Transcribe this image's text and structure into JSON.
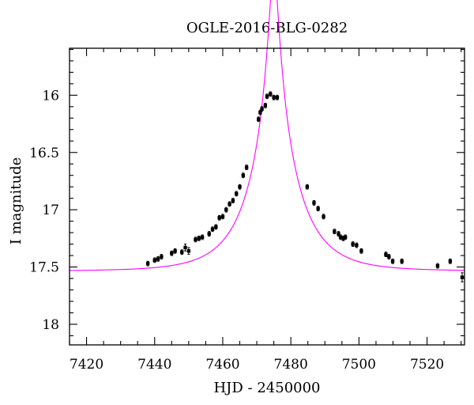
{
  "chart_data": {
    "type": "scatter",
    "title": "OGLE-2016-BLG-0282",
    "xlabel": "HJD - 2450000",
    "ylabel": "I magnitude",
    "xlim": [
      7415,
      7531
    ],
    "ylim": [
      18.18,
      15.59
    ],
    "y_inverted": true,
    "grid": false,
    "xticks": [
      7420,
      7440,
      7460,
      7480,
      7500,
      7520
    ],
    "xtick_labels": [
      "7420",
      "7440",
      "7460",
      "7480",
      "7500",
      "7520"
    ],
    "yticks": [
      16,
      16.5,
      17,
      17.5,
      18
    ],
    "ytick_labels": [
      "16",
      "16.5",
      "17",
      "17.5",
      "18"
    ],
    "colors": {
      "points": "#000000",
      "model": "#ff00ff",
      "frame": "#000000"
    },
    "model": {
      "type": "microlensing-fit",
      "t0": 7475.0,
      "u0": 0.089,
      "tE": 13.6,
      "m_baseline": 17.535
    },
    "series": [
      {
        "x": [
          7438,
          7440,
          7441,
          7442,
          7445,
          7446,
          7448,
          7449,
          7450,
          7452,
          7453,
          7454,
          7456,
          7457,
          7458,
          7459,
          7460,
          7461,
          7462,
          7463,
          7464,
          7465,
          7466,
          7467,
          7470.5,
          7471,
          7471.5,
          7472.5,
          7473,
          7474,
          7475,
          7476,
          7484.8,
          7486.8,
          7488,
          7489.6,
          7492.8,
          7494,
          7494.6,
          7495.4,
          7496,
          7498.2,
          7499.3,
          7500.7,
          7507.9,
          7508.8,
          7509.9,
          7512.6,
          7523.1,
          7526.8,
          7530.3
        ],
        "y": [
          17.47,
          17.44,
          17.43,
          17.41,
          17.38,
          17.36,
          17.37,
          17.33,
          17.36,
          17.26,
          17.25,
          17.24,
          17.21,
          17.17,
          17.15,
          17.07,
          17.06,
          17.0,
          16.95,
          16.92,
          16.86,
          16.8,
          16.7,
          16.63,
          16.21,
          16.15,
          16.12,
          16.09,
          16.01,
          15.99,
          16.02,
          16.02,
          16.8,
          16.94,
          16.99,
          17.06,
          17.19,
          17.21,
          17.24,
          17.25,
          17.24,
          17.3,
          17.31,
          17.36,
          17.39,
          17.41,
          17.45,
          17.45,
          17.49,
          17.45,
          17.59
        ],
        "yerr": [
          0.02,
          0.02,
          0.02,
          0.02,
          0.02,
          0.02,
          0.02,
          0.03,
          0.03,
          0.02,
          0.02,
          0.02,
          0.02,
          0.02,
          0.02,
          0.02,
          0.02,
          0.02,
          0.02,
          0.02,
          0.02,
          0.02,
          0.02,
          0.02,
          0.02,
          0.02,
          0.02,
          0.02,
          0.02,
          0.02,
          0.02,
          0.02,
          0.02,
          0.02,
          0.02,
          0.02,
          0.02,
          0.02,
          0.02,
          0.02,
          0.02,
          0.02,
          0.02,
          0.02,
          0.02,
          0.02,
          0.02,
          0.02,
          0.02,
          0.02,
          0.04
        ]
      }
    ]
  }
}
